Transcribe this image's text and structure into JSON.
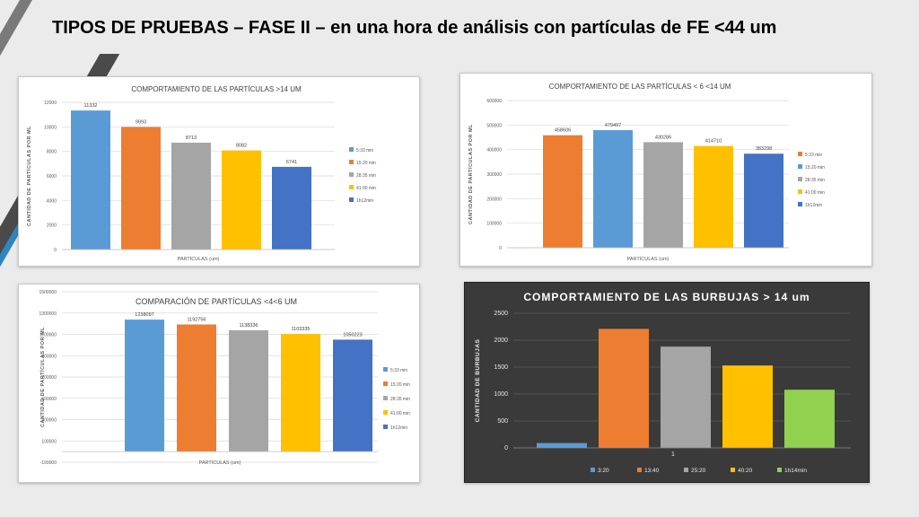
{
  "slide": {
    "title": "TIPOS DE PRUEBAS – FASE II – en una hora de análisis con partículas de FE <44 um"
  },
  "theme": {
    "background": "#ebebeb",
    "stripe_dark": "#4a4a4a",
    "stripe_accent": "#2e86c1",
    "text": "#000000"
  },
  "chart_data": [
    {
      "type": "bar",
      "title": "COMPORTAMIENTO DE LAS PARTÍCULAS >14 UM",
      "xlabel": "PARTÍCULAS (um)",
      "ylabel": "CANTIDAD DE PARTÍCULAS POR ML",
      "ylim": [
        0,
        12000
      ],
      "yticks": [
        "0",
        "2000",
        "4000",
        "6000",
        "8000",
        "10000",
        "12000"
      ],
      "tick_values": [
        0,
        2000,
        4000,
        6000,
        8000,
        10000,
        12000
      ],
      "series": [
        {
          "name": "5:33 min",
          "value": 11332,
          "label": "11332",
          "color": "#5b9bd5"
        },
        {
          "name": "15:20 min",
          "value": 9993,
          "label": "9993",
          "color": "#ed7d31"
        },
        {
          "name": "28:35  min",
          "value": 8713,
          "label": "8713",
          "color": "#a5a5a5"
        },
        {
          "name": "41:00 min",
          "value": 8082,
          "label": "8082",
          "color": "#ffc000"
        },
        {
          "name": "1h12min",
          "value": 6741,
          "label": "6741",
          "color": "#4472c4"
        }
      ],
      "legend": "right",
      "grid": true,
      "dark": false
    },
    {
      "type": "bar",
      "title": "COMPORTAMIENTO DE LAS PARTÍCULAS < 6 <14 UM",
      "xlabel": "PARTÍCULAS (um)",
      "ylabel": "CANTIDAD DE PARTÍCULAS POR ML",
      "ylim": [
        0,
        600000
      ],
      "yticks": [
        "0",
        "100000",
        "200000",
        "300000",
        "400000",
        "500000",
        "600000"
      ],
      "tick_values": [
        0,
        100000,
        200000,
        300000,
        400000,
        500000,
        600000
      ],
      "series": [
        {
          "name": "5:33 min",
          "value": 458606,
          "label": "458606",
          "color": "#ed7d31"
        },
        {
          "name": "15:20 min",
          "value": 479497,
          "label": "479497",
          "color": "#5b9bd5"
        },
        {
          "name": "28:35  min",
          "value": 430286,
          "label": "430286",
          "color": "#a5a5a5"
        },
        {
          "name": "41:00 min",
          "value": 414710,
          "label": "414710",
          "color": "#ffc000"
        },
        {
          "name": "1h12min",
          "value": 383298,
          "label": "383298",
          "color": "#4472c4"
        }
      ],
      "legend": "right",
      "grid": true,
      "dark": false
    },
    {
      "type": "bar",
      "title": "COMPARACIÓN DE PARTÍCULAS <4<6 UM",
      "xlabel": "PARTÍCULAS (um)",
      "ylabel": "CANTIDAD DE PARTÍCULAS POR ML",
      "ylim": [
        -100000,
        1500000
      ],
      "yticks": [
        "-100000",
        "100000",
        "300000",
        "500000",
        "700000",
        "900000",
        "1100000",
        "1300000",
        "1500000"
      ],
      "tick_values": [
        -100000,
        100000,
        300000,
        500000,
        700000,
        900000,
        1100000,
        1300000,
        1500000
      ],
      "series": [
        {
          "name": "5:33 min",
          "value": 1238097,
          "label": "1238097",
          "color": "#5b9bd5"
        },
        {
          "name": "15:20 min",
          "value": 1192756,
          "label": "1192756",
          "color": "#ed7d31"
        },
        {
          "name": "28:35  min",
          "value": 1138336,
          "label": "1138336",
          "color": "#a5a5a5"
        },
        {
          "name": "41:00 min",
          "value": 1103335,
          "label": "1103335",
          "color": "#ffc000"
        },
        {
          "name": "1h12min",
          "value": 1050223,
          "label": "1050223",
          "color": "#4472c4"
        }
      ],
      "legend": "right",
      "grid": true,
      "dark": false
    },
    {
      "type": "bar",
      "title": "COMPORTAMIENTO DE LAS BURBUJAS > 14 um",
      "xlabel": "",
      "category": "1",
      "ylabel": "CANTIDAD DE BURBUJAS",
      "ylim": [
        0,
        2500
      ],
      "yticks": [
        "0",
        "500",
        "1000",
        "1500",
        "2000",
        "2500"
      ],
      "tick_values": [
        0,
        500,
        1000,
        1500,
        2000,
        2500
      ],
      "series": [
        {
          "name": "3:20",
          "value": 90,
          "color": "#5b9bd5"
        },
        {
          "name": "13:40",
          "value": 2210,
          "color": "#ed7d31"
        },
        {
          "name": "25:20",
          "value": 1880,
          "color": "#a5a5a5"
        },
        {
          "name": "40:20",
          "value": 1530,
          "color": "#ffc000"
        },
        {
          "name": "1h14min",
          "value": 1080,
          "color": "#92d050"
        }
      ],
      "legend": "bottom",
      "grid": true,
      "dark": true
    }
  ]
}
